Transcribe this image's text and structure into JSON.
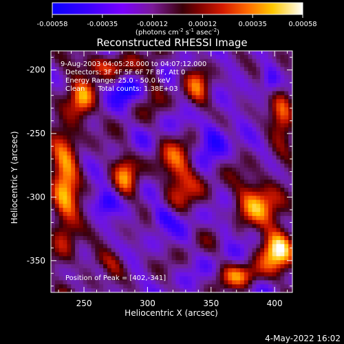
{
  "chart_data": {
    "type": "heatmap",
    "title": "Reconstructed RHESSI Image",
    "xlabel": "Heliocentric X (arcsec)",
    "ylabel": "Heliocentric Y (arcsec)",
    "xlim": [
      224,
      414
    ],
    "ylim": [
      -375,
      -185
    ],
    "x_ticks": [
      250,
      300,
      350,
      400
    ],
    "y_ticks": [
      -200,
      -250,
      -300,
      -350
    ],
    "colorbar": {
      "min": -0.00058,
      "max": 0.00058,
      "ticks": [
        "-0.00058",
        "-0.00035",
        "-0.00012",
        "0.00012",
        "0.00035",
        "0.00058"
      ],
      "unit_label": "(photons cm",
      "unit_exp1": "-2",
      "unit_mid": " s",
      "unit_exp2": "-1",
      "unit_mid2": " asec",
      "unit_exp3": "-2",
      "unit_close": ")"
    },
    "annotations": [
      "9-Aug-2003 04:05:28.000 to 04:07:12.000",
      "Detectors: 3F 4F 5F 6F 7F 8F, Att 0",
      "Energy Range: 25.0 - 50.0 keV",
      "Clean      Total counts: 1.38E+03"
    ],
    "peak_label": "Position of Peak = [402,-341]",
    "peak": [
      402,
      -341
    ],
    "grid": false
  },
  "footer": {
    "timestamp": "4-May-2022 16:02"
  }
}
